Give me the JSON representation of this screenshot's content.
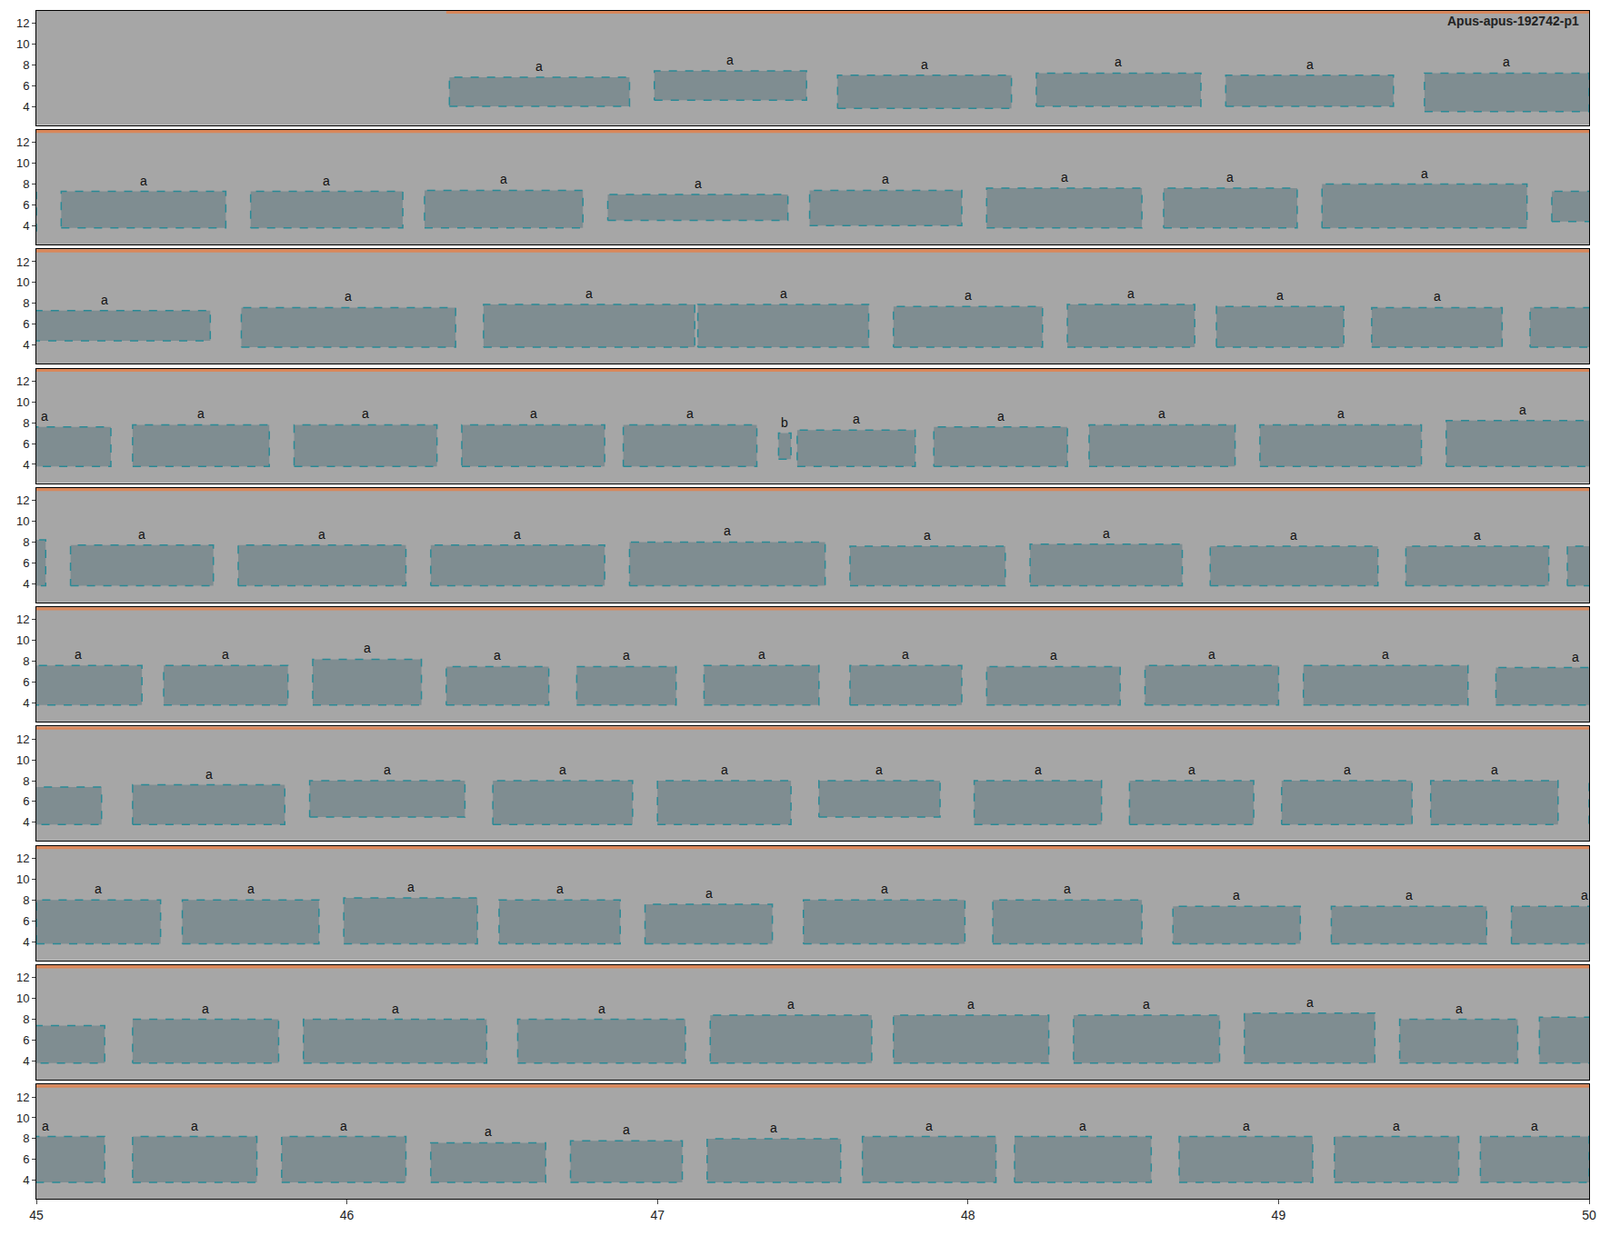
{
  "chart_data": {
    "type": "spectrogram",
    "title": "Apus-apus-192742-p1",
    "ylim": [
      2.2,
      13.2
    ],
    "yticks": [
      4,
      6,
      8,
      10,
      12
    ],
    "color": "#2a8a96",
    "band": {
      "start": 1.32,
      "end": 50,
      "low": 12.9,
      "high": 13.3,
      "color": "#d9875a"
    },
    "rows": [
      {
        "xlim": [
          0,
          5
        ]
      },
      {
        "xlim": [
          5,
          10
        ]
      },
      {
        "xlim": [
          10,
          15
        ]
      },
      {
        "xlim": [
          15,
          20
        ]
      },
      {
        "xlim": [
          20,
          25
        ]
      },
      {
        "xlim": [
          25,
          30
        ]
      },
      {
        "xlim": [
          30,
          35
        ]
      },
      {
        "xlim": [
          35,
          40
        ]
      },
      {
        "xlim": [
          40,
          45
        ]
      },
      {
        "xlim": [
          45,
          50
        ],
        "xticks": [
          45,
          46,
          47,
          48,
          49,
          50
        ]
      }
    ],
    "boxes": [
      {
        "start": 1.33,
        "end": 1.91,
        "low": 4.0,
        "high": 6.8,
        "label": "a"
      },
      {
        "start": 1.99,
        "end": 2.48,
        "low": 4.6,
        "high": 7.4,
        "label": "a"
      },
      {
        "start": 2.58,
        "end": 3.14,
        "low": 3.8,
        "high": 7.0,
        "label": "a"
      },
      {
        "start": 3.22,
        "end": 3.75,
        "low": 4.0,
        "high": 7.2,
        "label": "a"
      },
      {
        "start": 3.83,
        "end": 4.37,
        "low": 4.0,
        "high": 7.0,
        "label": "a"
      },
      {
        "start": 4.47,
        "end": 5.0,
        "low": 3.5,
        "high": 7.2,
        "label": "a"
      },
      {
        "start": 5.08,
        "end": 5.61,
        "low": 3.8,
        "high": 7.3,
        "label": "a"
      },
      {
        "start": 5.69,
        "end": 6.18,
        "low": 3.8,
        "high": 7.3,
        "label": "a"
      },
      {
        "start": 6.25,
        "end": 6.76,
        "low": 3.8,
        "high": 7.4,
        "label": "a"
      },
      {
        "start": 6.84,
        "end": 7.42,
        "low": 4.5,
        "high": 7.0,
        "label": "a"
      },
      {
        "start": 7.49,
        "end": 7.98,
        "low": 4.0,
        "high": 7.4,
        "label": "a"
      },
      {
        "start": 8.06,
        "end": 8.56,
        "low": 3.8,
        "high": 7.6,
        "label": "a"
      },
      {
        "start": 8.63,
        "end": 9.06,
        "low": 3.8,
        "high": 7.6,
        "label": "a"
      },
      {
        "start": 9.14,
        "end": 9.8,
        "low": 3.8,
        "high": 8.0,
        "label": "a"
      },
      {
        "start": 9.88,
        "end": 10.56,
        "low": 4.4,
        "high": 7.3,
        "label": "a"
      },
      {
        "start": 10.66,
        "end": 11.35,
        "low": 3.8,
        "high": 7.6,
        "label": "a"
      },
      {
        "start": 11.44,
        "end": 12.12,
        "low": 3.8,
        "high": 7.9,
        "label": "a"
      },
      {
        "start": 12.13,
        "end": 12.68,
        "low": 3.8,
        "high": 7.9,
        "label": "a"
      },
      {
        "start": 12.76,
        "end": 13.24,
        "low": 3.8,
        "high": 7.7,
        "label": "a"
      },
      {
        "start": 13.32,
        "end": 13.73,
        "low": 3.8,
        "high": 7.9,
        "label": "a"
      },
      {
        "start": 13.8,
        "end": 14.21,
        "low": 3.8,
        "high": 7.7,
        "label": "a"
      },
      {
        "start": 14.3,
        "end": 14.72,
        "low": 3.8,
        "high": 7.6,
        "label": "a"
      },
      {
        "start": 14.81,
        "end": 15.24,
        "low": 3.8,
        "high": 7.6,
        "label": "a"
      },
      {
        "start": 15.31,
        "end": 15.75,
        "low": 3.8,
        "high": 7.8,
        "label": "a"
      },
      {
        "start": 15.83,
        "end": 16.29,
        "low": 3.8,
        "high": 7.8,
        "label": "a"
      },
      {
        "start": 16.37,
        "end": 16.83,
        "low": 3.8,
        "high": 7.8,
        "label": "a"
      },
      {
        "start": 16.89,
        "end": 17.32,
        "low": 3.8,
        "high": 7.8,
        "label": "a"
      },
      {
        "start": 17.39,
        "end": 17.43,
        "low": 4.5,
        "high": 7.0,
        "label": "b"
      },
      {
        "start": 17.45,
        "end": 17.83,
        "low": 3.8,
        "high": 7.3,
        "label": "a"
      },
      {
        "start": 17.89,
        "end": 18.32,
        "low": 3.8,
        "high": 7.6,
        "label": "a"
      },
      {
        "start": 18.39,
        "end": 18.86,
        "low": 3.8,
        "high": 7.8,
        "label": "a"
      },
      {
        "start": 18.94,
        "end": 19.46,
        "low": 3.8,
        "high": 7.8,
        "label": "a"
      },
      {
        "start": 19.54,
        "end": 20.03,
        "low": 3.8,
        "high": 8.2,
        "label": "a"
      },
      {
        "start": 20.11,
        "end": 20.57,
        "low": 3.8,
        "high": 7.7,
        "label": "a"
      },
      {
        "start": 20.65,
        "end": 21.19,
        "low": 3.8,
        "high": 7.7,
        "label": "a"
      },
      {
        "start": 21.27,
        "end": 21.83,
        "low": 3.8,
        "high": 7.7,
        "label": "a"
      },
      {
        "start": 21.91,
        "end": 22.54,
        "low": 3.8,
        "high": 8.0,
        "label": "a"
      },
      {
        "start": 22.62,
        "end": 23.12,
        "low": 3.8,
        "high": 7.6,
        "label": "a"
      },
      {
        "start": 23.2,
        "end": 23.69,
        "low": 3.8,
        "high": 7.8,
        "label": "a"
      },
      {
        "start": 23.78,
        "end": 24.32,
        "low": 3.8,
        "high": 7.6,
        "label": "a"
      },
      {
        "start": 24.41,
        "end": 24.87,
        "low": 3.8,
        "high": 7.6,
        "label": "a"
      },
      {
        "start": 24.93,
        "end": 25.34,
        "low": 3.8,
        "high": 7.6,
        "label": "a"
      },
      {
        "start": 25.41,
        "end": 25.81,
        "low": 3.8,
        "high": 7.6,
        "label": "a"
      },
      {
        "start": 25.89,
        "end": 26.24,
        "low": 3.8,
        "high": 8.2,
        "label": "a"
      },
      {
        "start": 26.32,
        "end": 26.65,
        "low": 3.8,
        "high": 7.5,
        "label": "a"
      },
      {
        "start": 26.74,
        "end": 27.06,
        "low": 3.8,
        "high": 7.5,
        "label": "a"
      },
      {
        "start": 27.15,
        "end": 27.52,
        "low": 3.8,
        "high": 7.6,
        "label": "a"
      },
      {
        "start": 27.62,
        "end": 27.98,
        "low": 3.8,
        "high": 7.6,
        "label": "a"
      },
      {
        "start": 28.06,
        "end": 28.49,
        "low": 3.8,
        "high": 7.5,
        "label": "a"
      },
      {
        "start": 28.57,
        "end": 29.0,
        "low": 3.8,
        "high": 7.6,
        "label": "a"
      },
      {
        "start": 29.08,
        "end": 29.61,
        "low": 3.8,
        "high": 7.6,
        "label": "a"
      },
      {
        "start": 29.7,
        "end": 30.21,
        "low": 3.8,
        "high": 7.4,
        "label": "a"
      },
      {
        "start": 30.31,
        "end": 30.8,
        "low": 3.8,
        "high": 7.6,
        "label": "a"
      },
      {
        "start": 30.88,
        "end": 31.38,
        "low": 4.5,
        "high": 8.0,
        "label": "a"
      },
      {
        "start": 31.47,
        "end": 31.92,
        "low": 3.8,
        "high": 8.0,
        "label": "a"
      },
      {
        "start": 32.0,
        "end": 32.43,
        "low": 3.8,
        "high": 8.0,
        "label": "a"
      },
      {
        "start": 32.52,
        "end": 32.91,
        "low": 4.5,
        "high": 8.0,
        "label": "a"
      },
      {
        "start": 33.02,
        "end": 33.43,
        "low": 3.8,
        "high": 8.0,
        "label": "a"
      },
      {
        "start": 33.52,
        "end": 33.92,
        "low": 3.8,
        "high": 8.0,
        "label": "a"
      },
      {
        "start": 34.01,
        "end": 34.43,
        "low": 3.8,
        "high": 8.0,
        "label": "a"
      },
      {
        "start": 34.49,
        "end": 34.9,
        "low": 3.8,
        "high": 8.0,
        "label": "a"
      },
      {
        "start": 35.0,
        "end": 35.4,
        "low": 3.8,
        "high": 8.0,
        "label": "a"
      },
      {
        "start": 35.47,
        "end": 35.91,
        "low": 3.8,
        "high": 8.0,
        "label": "a"
      },
      {
        "start": 35.99,
        "end": 36.42,
        "low": 3.8,
        "high": 8.2,
        "label": "a"
      },
      {
        "start": 36.49,
        "end": 36.88,
        "low": 3.8,
        "high": 8.0,
        "label": "a"
      },
      {
        "start": 36.96,
        "end": 37.37,
        "low": 3.8,
        "high": 7.6,
        "label": "a"
      },
      {
        "start": 37.47,
        "end": 37.99,
        "low": 3.8,
        "high": 8.0,
        "label": "a"
      },
      {
        "start": 38.08,
        "end": 38.56,
        "low": 3.8,
        "high": 8.0,
        "label": "a"
      },
      {
        "start": 38.66,
        "end": 39.07,
        "low": 3.8,
        "high": 7.4,
        "label": "a"
      },
      {
        "start": 39.17,
        "end": 39.67,
        "low": 3.8,
        "high": 7.4,
        "label": "a"
      },
      {
        "start": 39.75,
        "end": 40.22,
        "low": 3.8,
        "high": 7.4,
        "label": "a"
      },
      {
        "start": 40.31,
        "end": 40.78,
        "low": 3.8,
        "high": 8.0,
        "label": "a"
      },
      {
        "start": 40.86,
        "end": 41.45,
        "low": 3.8,
        "high": 8.0,
        "label": "a"
      },
      {
        "start": 41.55,
        "end": 42.09,
        "low": 3.8,
        "high": 8.0,
        "label": "a"
      },
      {
        "start": 42.17,
        "end": 42.69,
        "low": 3.8,
        "high": 8.4,
        "label": "a"
      },
      {
        "start": 42.76,
        "end": 43.26,
        "low": 3.8,
        "high": 8.4,
        "label": "a"
      },
      {
        "start": 43.34,
        "end": 43.81,
        "low": 3.8,
        "high": 8.4,
        "label": "a"
      },
      {
        "start": 43.89,
        "end": 44.31,
        "low": 3.8,
        "high": 8.6,
        "label": "a"
      },
      {
        "start": 44.39,
        "end": 44.77,
        "low": 3.8,
        "high": 8.0,
        "label": "a"
      },
      {
        "start": 44.84,
        "end": 45.22,
        "low": 3.8,
        "high": 8.2,
        "label": "a"
      },
      {
        "start": 45.31,
        "end": 45.71,
        "low": 3.8,
        "high": 8.2,
        "label": "a"
      },
      {
        "start": 45.79,
        "end": 46.19,
        "low": 3.8,
        "high": 8.2,
        "label": "a"
      },
      {
        "start": 46.27,
        "end": 46.64,
        "low": 3.8,
        "high": 7.6,
        "label": "a"
      },
      {
        "start": 46.72,
        "end": 47.08,
        "low": 3.8,
        "high": 7.8,
        "label": "a"
      },
      {
        "start": 47.16,
        "end": 47.59,
        "low": 3.8,
        "high": 8.0,
        "label": "a"
      },
      {
        "start": 47.66,
        "end": 48.09,
        "low": 3.8,
        "high": 8.2,
        "label": "a"
      },
      {
        "start": 48.15,
        "end": 48.59,
        "low": 3.8,
        "high": 8.2,
        "label": "a"
      },
      {
        "start": 48.68,
        "end": 49.11,
        "low": 3.8,
        "high": 8.2,
        "label": "a"
      },
      {
        "start": 49.18,
        "end": 49.58,
        "low": 3.8,
        "high": 8.2,
        "label": "a"
      },
      {
        "start": 49.65,
        "end": 50.0,
        "low": 3.8,
        "high": 8.2,
        "label": "a"
      }
    ]
  }
}
